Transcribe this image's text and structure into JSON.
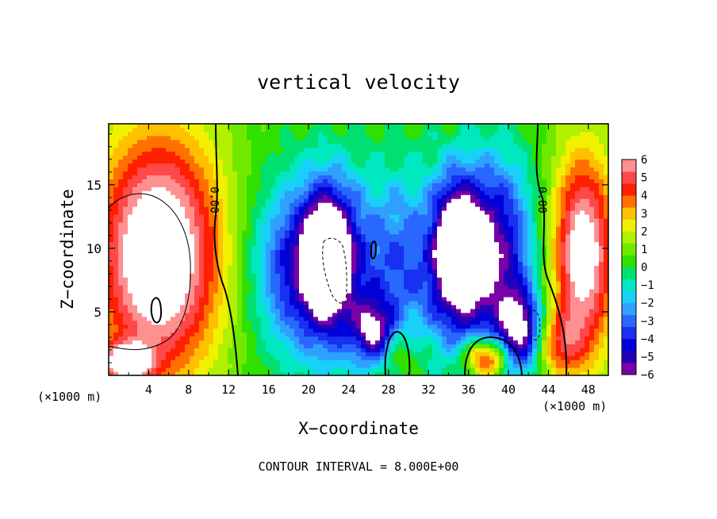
{
  "chart_data": {
    "type": "heatmap",
    "title": "vertical velocity",
    "xlabel": "X−coordinate",
    "ylabel": "Z−coordinate",
    "x_unit_left": "(×1000 m)",
    "x_unit_right": "(×1000 m)",
    "footer": "CONTOUR INTERVAL = 8.000E+00",
    "xlim": [
      0,
      50
    ],
    "ylim": [
      0,
      19.8
    ],
    "x_ticks": [
      4,
      8,
      12,
      16,
      20,
      24,
      28,
      32,
      36,
      40,
      44,
      48
    ],
    "x_tick_labels": [
      "4",
      "8",
      "12",
      "16",
      "20",
      "24",
      "28",
      "32",
      "36",
      "40",
      "44",
      "48"
    ],
    "y_ticks": [
      5,
      10,
      15
    ],
    "y_tick_labels": [
      "5",
      "10",
      "15"
    ],
    "colorbar": {
      "min": -6,
      "max": 6,
      "tick_values": [
        6,
        5,
        4,
        3,
        2,
        1,
        0,
        -1,
        -2,
        -3,
        -4,
        -5,
        -6
      ],
      "tick_labels": [
        "6",
        "5",
        "4",
        "3",
        "2",
        "1",
        "0",
        "−1",
        "−2",
        "−3",
        "−4",
        "−5",
        "−6"
      ],
      "colors": [
        "#7a00a8",
        "#2400b8",
        "#0000d8",
        "#1830f0",
        "#2868ff",
        "#30a0ff",
        "#18d0f8",
        "#00e8c0",
        "#00e070",
        "#30e000",
        "#70e800",
        "#b0f000",
        "#f0f000",
        "#ffc000",
        "#ff7000",
        "#ff2000",
        "#ff4848",
        "#ff9090"
      ]
    },
    "contour_labels": [
      {
        "x": 10.6,
        "z": 13.8,
        "text": "0.00"
      },
      {
        "x": 43.4,
        "z": 13.8,
        "text": "0.00"
      }
    ],
    "features": [
      {
        "cx": 5,
        "cz": 9.5,
        "rx": 6.2,
        "rz": 9.5,
        "w": 7.5
      },
      {
        "cx": 1.8,
        "cz": 1.0,
        "rx": 2.5,
        "rz": 1.5,
        "w": 6
      },
      {
        "cx": 47.5,
        "cz": 9.5,
        "rx": 3.2,
        "rz": 8.0,
        "w": 6.5
      },
      {
        "cx": 45,
        "cz": 2.5,
        "rx": 2.5,
        "rz": 2.5,
        "w": 3
      },
      {
        "cx": 37.8,
        "cz": 1.4,
        "rx": 2.2,
        "rz": 1.6,
        "w": 6
      },
      {
        "cx": 29,
        "cz": 1.8,
        "rx": 2.2,
        "rz": 2.2,
        "w": 1.8
      },
      {
        "cx": 22.5,
        "cz": 8.5,
        "rx": 4.5,
        "rz": 7.5,
        "w": -5.5
      },
      {
        "cx": 21.8,
        "cz": 9.5,
        "rx": 2.2,
        "rz": 4.5,
        "w": -6
      },
      {
        "cx": 35.5,
        "cz": 9.0,
        "rx": 4.5,
        "rz": 7.5,
        "w": -5.5
      },
      {
        "cx": 34.8,
        "cz": 10.0,
        "rx": 2.0,
        "rz": 4.5,
        "w": -6
      },
      {
        "cx": 41.2,
        "cz": 3.5,
        "rx": 2.2,
        "rz": 3.2,
        "w": -6
      },
      {
        "cx": 26.5,
        "cz": 3.5,
        "rx": 2.0,
        "rz": 2.5,
        "w": -5
      },
      {
        "cx": 17.5,
        "cz": 8.5,
        "rx": 4.0,
        "rz": 6.5,
        "w": -3
      },
      {
        "cx": 29.0,
        "cz": 8.5,
        "rx": 3.0,
        "rz": 8.0,
        "w": -2.5
      },
      {
        "cx": 39.5,
        "cz": 10.0,
        "rx": 3.5,
        "rz": 7.5,
        "w": -3.5
      }
    ]
  }
}
